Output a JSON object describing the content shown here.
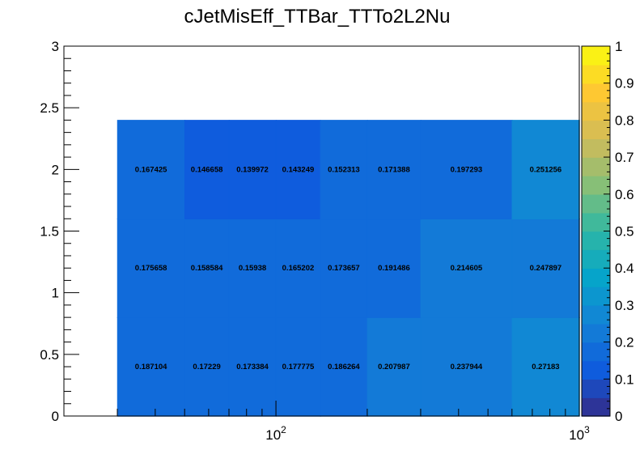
{
  "chart_data": {
    "type": "heatmap",
    "title": "cJetMisEff_TTBar_TTTo2L2Nu",
    "xlabel": "",
    "ylabel": "",
    "x_scale": "log",
    "x_range": [
      20,
      1000
    ],
    "y_range": [
      0,
      3
    ],
    "z_range": [
      0,
      1
    ],
    "x_edges": [
      30,
      50,
      70,
      100,
      140,
      200,
      300,
      600,
      1000
    ],
    "y_edges": [
      0,
      0.8,
      1.6,
      2.4
    ],
    "x_ticks": [
      {
        "value": 100,
        "base": "10",
        "exp": "2"
      },
      {
        "value": 1000,
        "base": "10",
        "exp": "3"
      }
    ],
    "y_ticks": [
      {
        "value": 0,
        "label": "0"
      },
      {
        "value": 0.5,
        "label": "0.5"
      },
      {
        "value": 1,
        "label": "1"
      },
      {
        "value": 1.5,
        "label": "1.5"
      },
      {
        "value": 2,
        "label": "2"
      },
      {
        "value": 2.5,
        "label": "2.5"
      },
      {
        "value": 3,
        "label": "3"
      }
    ],
    "z_ticks": [
      {
        "value": 0,
        "label": "0"
      },
      {
        "value": 0.1,
        "label": "0.1"
      },
      {
        "value": 0.2,
        "label": "0.2"
      },
      {
        "value": 0.3,
        "label": "0.3"
      },
      {
        "value": 0.4,
        "label": "0.4"
      },
      {
        "value": 0.5,
        "label": "0.5"
      },
      {
        "value": 0.6,
        "label": "0.6"
      },
      {
        "value": 0.7,
        "label": "0.7"
      },
      {
        "value": 0.8,
        "label": "0.8"
      },
      {
        "value": 0.9,
        "label": "0.9"
      },
      {
        "value": 1,
        "label": "1"
      }
    ],
    "palette": [
      "#352a87",
      "#0f5cdd",
      "#1481d6",
      "#06a4ca",
      "#2eb7a4",
      "#87bf77",
      "#d1bb59",
      "#fec832",
      "#f9fb0e"
    ],
    "cells": [
      {
        "row": 0,
        "values": [
          0.187104,
          0.17229,
          0.173384,
          0.177775,
          0.186264,
          0.207987,
          0.237944,
          0.27183
        ],
        "labels": [
          "0.187104",
          "0.17229",
          "0.173384",
          "0.177775",
          "0.186264",
          "0.207987",
          "0.237944",
          "0.27183"
        ]
      },
      {
        "row": 1,
        "values": [
          0.175658,
          0.158584,
          0.15938,
          0.165202,
          0.173657,
          0.191486,
          0.214605,
          0.247897
        ],
        "labels": [
          "0.175658",
          "0.158584",
          "0.15938",
          "0.165202",
          "0.173657",
          "0.191486",
          "0.214605",
          "0.247897"
        ]
      },
      {
        "row": 2,
        "values": [
          0.167425,
          0.146658,
          0.139972,
          0.143249,
          0.152313,
          0.171388,
          0.197293,
          0.251256
        ],
        "labels": [
          "0.167425",
          "0.146658",
          "0.139972",
          "0.143249",
          "0.152313",
          "0.171388",
          "0.197293",
          "0.251256"
        ]
      }
    ]
  }
}
